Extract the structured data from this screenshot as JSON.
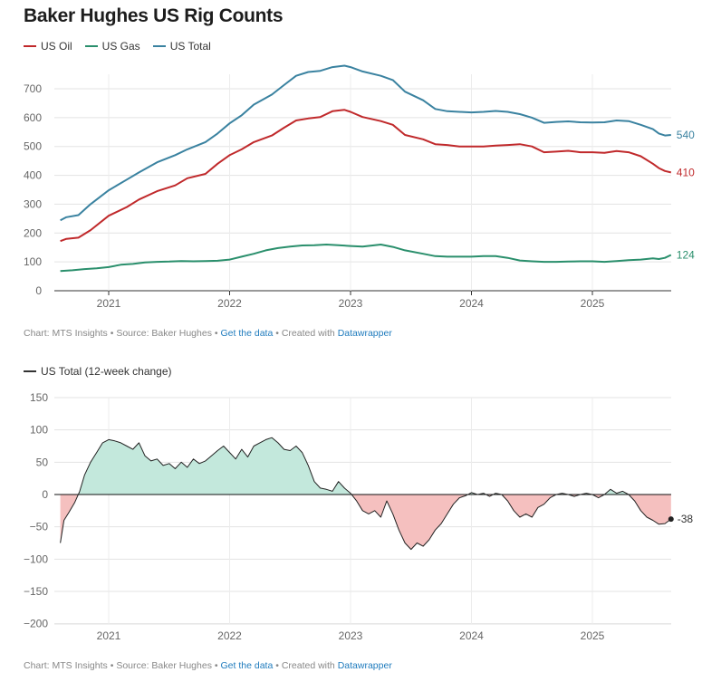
{
  "title": "Baker Hughes US Rig Counts",
  "footer": {
    "chart_by": "Chart: MTS Insights",
    "source": "Source: Baker Hughes",
    "get_data": "Get the data",
    "created_with": "Created with",
    "tool": "Datawrapper",
    "separator": "•"
  },
  "colors": {
    "oil": "#c0292b",
    "gas": "#2a8f6c",
    "total": "#3a82a0",
    "change_line": "#222222",
    "pos_fill": "#c3e8dc",
    "neg_fill": "#f5c0bf"
  },
  "chart_data": [
    {
      "type": "line",
      "title": "Baker Hughes US Rig Counts",
      "x_ticks": [
        "2021",
        "2022",
        "2023",
        "2024",
        "2025"
      ],
      "y_ticks": [
        0,
        100,
        200,
        300,
        400,
        500,
        600,
        700
      ],
      "ylim": [
        0,
        780
      ],
      "grid": true,
      "legend_position": "top-left",
      "series": [
        {
          "name": "US Oil",
          "end_label": "410",
          "points": [
            [
              2020.6,
              172
            ],
            [
              2020.65,
              180
            ],
            [
              2020.75,
              184
            ],
            [
              2020.85,
              210
            ],
            [
              2021.0,
              260
            ],
            [
              2021.15,
              290
            ],
            [
              2021.25,
              316
            ],
            [
              2021.4,
              345
            ],
            [
              2021.55,
              365
            ],
            [
              2021.65,
              390
            ],
            [
              2021.8,
              405
            ],
            [
              2021.9,
              440
            ],
            [
              2022.0,
              470
            ],
            [
              2022.1,
              490
            ],
            [
              2022.2,
              515
            ],
            [
              2022.35,
              538
            ],
            [
              2022.45,
              565
            ],
            [
              2022.55,
              590
            ],
            [
              2022.65,
              597
            ],
            [
              2022.75,
              602
            ],
            [
              2022.85,
              622
            ],
            [
              2022.95,
              627
            ],
            [
              2023.0,
              620
            ],
            [
              2023.1,
              602
            ],
            [
              2023.25,
              588
            ],
            [
              2023.35,
              575
            ],
            [
              2023.45,
              540
            ],
            [
              2023.6,
              525
            ],
            [
              2023.7,
              508
            ],
            [
              2023.8,
              505
            ],
            [
              2023.9,
              500
            ],
            [
              2024.0,
              500
            ],
            [
              2024.1,
              500
            ],
            [
              2024.2,
              503
            ],
            [
              2024.3,
              505
            ],
            [
              2024.4,
              508
            ],
            [
              2024.5,
              500
            ],
            [
              2024.6,
              480
            ],
            [
              2024.7,
              482
            ],
            [
              2024.8,
              485
            ],
            [
              2024.9,
              480
            ],
            [
              2025.0,
              480
            ],
            [
              2025.1,
              478
            ],
            [
              2025.2,
              484
            ],
            [
              2025.3,
              480
            ],
            [
              2025.4,
              466
            ],
            [
              2025.5,
              440
            ],
            [
              2025.55,
              425
            ],
            [
              2025.6,
              415
            ],
            [
              2025.65,
              410
            ]
          ]
        },
        {
          "name": "US Gas",
          "end_label": "124",
          "points": [
            [
              2020.6,
              68
            ],
            [
              2020.7,
              71
            ],
            [
              2020.8,
              75
            ],
            [
              2020.9,
              78
            ],
            [
              2021.0,
              82
            ],
            [
              2021.1,
              90
            ],
            [
              2021.2,
              93
            ],
            [
              2021.3,
              98
            ],
            [
              2021.4,
              100
            ],
            [
              2021.5,
              101
            ],
            [
              2021.6,
              103
            ],
            [
              2021.7,
              102
            ],
            [
              2021.8,
              103
            ],
            [
              2021.9,
              104
            ],
            [
              2022.0,
              108
            ],
            [
              2022.1,
              118
            ],
            [
              2022.2,
              128
            ],
            [
              2022.3,
              140
            ],
            [
              2022.4,
              148
            ],
            [
              2022.5,
              153
            ],
            [
              2022.6,
              157
            ],
            [
              2022.7,
              158
            ],
            [
              2022.8,
              160
            ],
            [
              2022.9,
              158
            ],
            [
              2023.0,
              155
            ],
            [
              2023.1,
              153
            ],
            [
              2023.2,
              158
            ],
            [
              2023.25,
              160
            ],
            [
              2023.35,
              152
            ],
            [
              2023.45,
              140
            ],
            [
              2023.6,
              128
            ],
            [
              2023.7,
              120
            ],
            [
              2023.8,
              118
            ],
            [
              2023.9,
              118
            ],
            [
              2024.0,
              118
            ],
            [
              2024.1,
              120
            ],
            [
              2024.2,
              120
            ],
            [
              2024.3,
              114
            ],
            [
              2024.4,
              105
            ],
            [
              2024.5,
              102
            ],
            [
              2024.6,
              100
            ],
            [
              2024.7,
              100
            ],
            [
              2024.8,
              101
            ],
            [
              2024.9,
              102
            ],
            [
              2025.0,
              102
            ],
            [
              2025.1,
              100
            ],
            [
              2025.2,
              103
            ],
            [
              2025.3,
              106
            ],
            [
              2025.4,
              108
            ],
            [
              2025.5,
              112
            ],
            [
              2025.55,
              110
            ],
            [
              2025.6,
              114
            ],
            [
              2025.65,
              124
            ]
          ]
        },
        {
          "name": "US Total",
          "end_label": "540",
          "points": [
            [
              2020.6,
              244
            ],
            [
              2020.65,
              255
            ],
            [
              2020.75,
              262
            ],
            [
              2020.85,
              300
            ],
            [
              2021.0,
              348
            ],
            [
              2021.15,
              385
            ],
            [
              2021.25,
              410
            ],
            [
              2021.4,
              445
            ],
            [
              2021.55,
              470
            ],
            [
              2021.65,
              490
            ],
            [
              2021.8,
              515
            ],
            [
              2021.9,
              545
            ],
            [
              2022.0,
              580
            ],
            [
              2022.1,
              608
            ],
            [
              2022.2,
              645
            ],
            [
              2022.35,
              680
            ],
            [
              2022.45,
              713
            ],
            [
              2022.55,
              745
            ],
            [
              2022.65,
              758
            ],
            [
              2022.75,
              762
            ],
            [
              2022.85,
              775
            ],
            [
              2022.95,
              780
            ],
            [
              2023.0,
              775
            ],
            [
              2023.1,
              760
            ],
            [
              2023.25,
              745
            ],
            [
              2023.35,
              730
            ],
            [
              2023.45,
              690
            ],
            [
              2023.6,
              660
            ],
            [
              2023.7,
              630
            ],
            [
              2023.8,
              622
            ],
            [
              2023.9,
              620
            ],
            [
              2024.0,
              618
            ],
            [
              2024.1,
              620
            ],
            [
              2024.2,
              623
            ],
            [
              2024.3,
              620
            ],
            [
              2024.4,
              612
            ],
            [
              2024.5,
              600
            ],
            [
              2024.6,
              582
            ],
            [
              2024.7,
              585
            ],
            [
              2024.8,
              587
            ],
            [
              2024.9,
              584
            ],
            [
              2025.0,
              583
            ],
            [
              2025.1,
              584
            ],
            [
              2025.2,
              590
            ],
            [
              2025.3,
              588
            ],
            [
              2025.4,
              575
            ],
            [
              2025.5,
              560
            ],
            [
              2025.55,
              545
            ],
            [
              2025.6,
              538
            ],
            [
              2025.65,
              540
            ]
          ]
        }
      ]
    },
    {
      "type": "area",
      "series": [
        {
          "name": "US Total (12-week change)",
          "end_label": "-38",
          "points": [
            [
              2020.6,
              -75
            ],
            [
              2020.63,
              -40
            ],
            [
              2020.67,
              -28
            ],
            [
              2020.72,
              -12
            ],
            [
              2020.76,
              5
            ],
            [
              2020.8,
              30
            ],
            [
              2020.85,
              50
            ],
            [
              2020.9,
              65
            ],
            [
              2020.95,
              80
            ],
            [
              2021.0,
              85
            ],
            [
              2021.05,
              83
            ],
            [
              2021.1,
              80
            ],
            [
              2021.15,
              75
            ],
            [
              2021.2,
              70
            ],
            [
              2021.25,
              80
            ],
            [
              2021.3,
              60
            ],
            [
              2021.35,
              52
            ],
            [
              2021.4,
              55
            ],
            [
              2021.45,
              45
            ],
            [
              2021.5,
              48
            ],
            [
              2021.55,
              40
            ],
            [
              2021.6,
              50
            ],
            [
              2021.65,
              42
            ],
            [
              2021.7,
              55
            ],
            [
              2021.75,
              48
            ],
            [
              2021.8,
              52
            ],
            [
              2021.85,
              60
            ],
            [
              2021.9,
              68
            ],
            [
              2021.95,
              75
            ],
            [
              2022.0,
              65
            ],
            [
              2022.05,
              55
            ],
            [
              2022.1,
              70
            ],
            [
              2022.15,
              58
            ],
            [
              2022.2,
              75
            ],
            [
              2022.25,
              80
            ],
            [
              2022.3,
              85
            ],
            [
              2022.35,
              88
            ],
            [
              2022.4,
              80
            ],
            [
              2022.45,
              70
            ],
            [
              2022.5,
              68
            ],
            [
              2022.55,
              75
            ],
            [
              2022.6,
              65
            ],
            [
              2022.65,
              45
            ],
            [
              2022.7,
              20
            ],
            [
              2022.75,
              10
            ],
            [
              2022.8,
              8
            ],
            [
              2022.85,
              5
            ],
            [
              2022.9,
              20
            ],
            [
              2022.95,
              10
            ],
            [
              2023.0,
              2
            ],
            [
              2023.05,
              -10
            ],
            [
              2023.1,
              -25
            ],
            [
              2023.15,
              -30
            ],
            [
              2023.2,
              -25
            ],
            [
              2023.25,
              -35
            ],
            [
              2023.3,
              -10
            ],
            [
              2023.35,
              -30
            ],
            [
              2023.4,
              -55
            ],
            [
              2023.45,
              -75
            ],
            [
              2023.5,
              -85
            ],
            [
              2023.55,
              -75
            ],
            [
              2023.6,
              -80
            ],
            [
              2023.65,
              -70
            ],
            [
              2023.7,
              -55
            ],
            [
              2023.75,
              -45
            ],
            [
              2023.8,
              -30
            ],
            [
              2023.85,
              -15
            ],
            [
              2023.9,
              -5
            ],
            [
              2023.95,
              -2
            ],
            [
              2024.0,
              3
            ],
            [
              2024.05,
              0
            ],
            [
              2024.1,
              2
            ],
            [
              2024.15,
              -3
            ],
            [
              2024.2,
              2
            ],
            [
              2024.25,
              0
            ],
            [
              2024.3,
              -10
            ],
            [
              2024.35,
              -25
            ],
            [
              2024.4,
              -35
            ],
            [
              2024.45,
              -30
            ],
            [
              2024.5,
              -35
            ],
            [
              2024.55,
              -20
            ],
            [
              2024.6,
              -15
            ],
            [
              2024.65,
              -5
            ],
            [
              2024.7,
              0
            ],
            [
              2024.75,
              2
            ],
            [
              2024.8,
              0
            ],
            [
              2024.85,
              -3
            ],
            [
              2024.9,
              0
            ],
            [
              2024.95,
              2
            ],
            [
              2025.0,
              0
            ],
            [
              2025.05,
              -5
            ],
            [
              2025.1,
              0
            ],
            [
              2025.15,
              8
            ],
            [
              2025.2,
              2
            ],
            [
              2025.25,
              5
            ],
            [
              2025.3,
              0
            ],
            [
              2025.35,
              -10
            ],
            [
              2025.4,
              -25
            ],
            [
              2025.45,
              -35
            ],
            [
              2025.5,
              -40
            ],
            [
              2025.55,
              -46
            ],
            [
              2025.6,
              -45
            ],
            [
              2025.65,
              -38
            ]
          ]
        }
      ],
      "x_ticks": [
        "2021",
        "2022",
        "2023",
        "2024",
        "2025"
      ],
      "y_ticks": [
        150,
        100,
        50,
        0,
        -50,
        -100,
        -150,
        -200
      ],
      "y_tick_labels": [
        "150",
        "100",
        "50",
        "0",
        "−50",
        "−100",
        "−150",
        "−200"
      ],
      "ylim": [
        -200,
        150
      ],
      "grid": true,
      "legend_position": "top-left"
    }
  ]
}
